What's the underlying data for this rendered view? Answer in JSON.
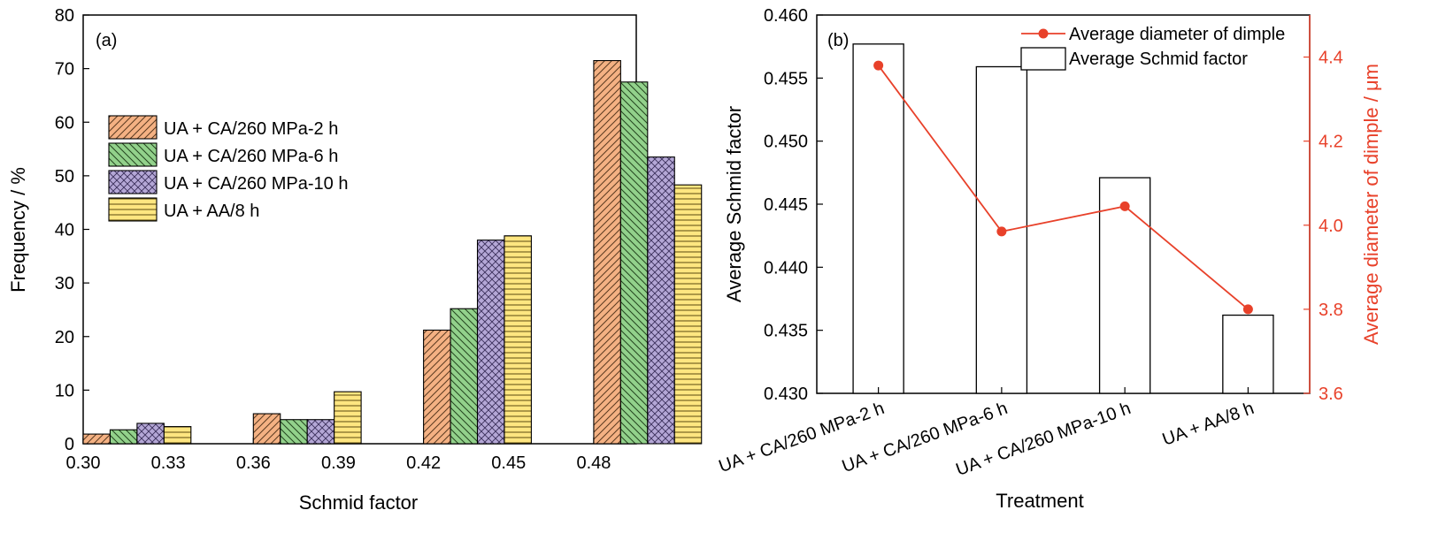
{
  "chart_data": [
    {
      "type": "bar",
      "panel_label": "(a)",
      "xlabel": "Schmid factor",
      "ylabel": "Frequency / %",
      "xlim": [
        0.3,
        0.495
      ],
      "ylim": [
        0,
        80
      ],
      "xticks": [
        "0.30",
        "0.33",
        "0.36",
        "0.39",
        "0.42",
        "0.45",
        "0.48"
      ],
      "xtick_values": [
        0.3,
        0.33,
        0.36,
        0.39,
        0.42,
        0.45,
        0.48
      ],
      "yticks": [
        "0",
        "10",
        "20",
        "30",
        "40",
        "50",
        "60",
        "70",
        "80"
      ],
      "ytick_values": [
        0,
        10,
        20,
        30,
        40,
        50,
        60,
        70,
        80
      ],
      "bins": [
        0.3,
        0.36,
        0.42,
        0.48
      ],
      "bin_labels": [
        "0.30–0.33",
        "0.36–0.39",
        "0.42–0.45",
        "0.48–0.51"
      ],
      "series": [
        {
          "name": "UA + CA/260 MPa-2 h",
          "color": "#f4b183",
          "pattern": "diag-right",
          "values": [
            1.8,
            5.6,
            21.2,
            71.5
          ]
        },
        {
          "name": "UA + CA/260 MPa-6 h",
          "color": "#92d18b",
          "pattern": "diag-left",
          "values": [
            2.6,
            4.5,
            25.2,
            67.5
          ]
        },
        {
          "name": "UA + CA/260 MPa-10 h",
          "color": "#b4a7d6",
          "pattern": "crosshatch",
          "values": [
            3.8,
            4.5,
            38.0,
            53.5
          ]
        },
        {
          "name": "UA + AA/8 h",
          "color": "#ffe680",
          "pattern": "horizontal",
          "values": [
            3.2,
            9.7,
            38.8,
            48.3
          ]
        }
      ],
      "legend_position": "left-middle"
    },
    {
      "type": "bar+line",
      "panel_label": "(b)",
      "xlabel": "Treatment",
      "ylabel": "Average Schmid factor",
      "y2label": "Average diameter of dimple / μm",
      "categories": [
        "UA + CA/260 MPa-2 h",
        "UA + CA/260 MPa-6 h",
        "UA + CA/260 MPa-10 h",
        "UA + AA/8 h"
      ],
      "ylim": [
        0.43,
        0.46
      ],
      "yticks": [
        "0.430",
        "0.435",
        "0.440",
        "0.445",
        "0.450",
        "0.455",
        "0.460"
      ],
      "ytick_values": [
        0.43,
        0.435,
        0.44,
        0.445,
        0.45,
        0.455,
        0.46
      ],
      "y2lim": [
        3.6,
        4.5
      ],
      "y2ticks": [
        "3.6",
        "3.8",
        "4.0",
        "4.2",
        "4.4"
      ],
      "y2tick_values": [
        3.6,
        3.8,
        4.0,
        4.2,
        4.4
      ],
      "bar_series": {
        "name": "Average Schmid factor",
        "values": [
          0.4577,
          0.4559,
          0.4471,
          0.4362
        ]
      },
      "line_series": {
        "name": "Average diameter of dimple",
        "color": "#e8412a",
        "values": [
          4.38,
          3.985,
          4.045,
          3.8
        ]
      },
      "legend_position": "top-right"
    }
  ]
}
